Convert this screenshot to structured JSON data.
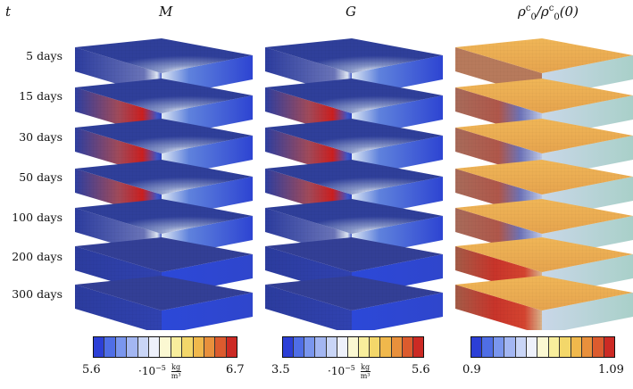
{
  "headers": {
    "time": "t",
    "col1": "M",
    "col2": "G",
    "col3": {
      "rho": "ρ",
      "sup": "c",
      "sub": "0",
      "slash": "/",
      "arg": "(0)"
    }
  },
  "rows": [
    "5 days",
    "15 days",
    "30 days",
    "50 days",
    "100 days",
    "200 days",
    "300 days"
  ],
  "colorbars": {
    "colors": [
      "#2c3fd6",
      "#4f6ee6",
      "#7a96ee",
      "#a3b6f2",
      "#c9d5f6",
      "#eef1fb",
      "#fbf8d2",
      "#f8ee9c",
      "#f3d76a",
      "#f0b84c",
      "#e8903c",
      "#dc5b2e",
      "#cc2a24"
    ],
    "bar1": {
      "min": "5.6",
      "max": "6.7",
      "unit_prefix": "·10",
      "exp": "−5",
      "num": "kg",
      "den": "m³"
    },
    "bar2": {
      "min": "3.5",
      "max": "5.6",
      "unit_prefix": "·10",
      "exp": "−5",
      "num": "kg",
      "den": "m³"
    },
    "bar3": {
      "min": "0.9",
      "max": "1.09"
    }
  }
}
